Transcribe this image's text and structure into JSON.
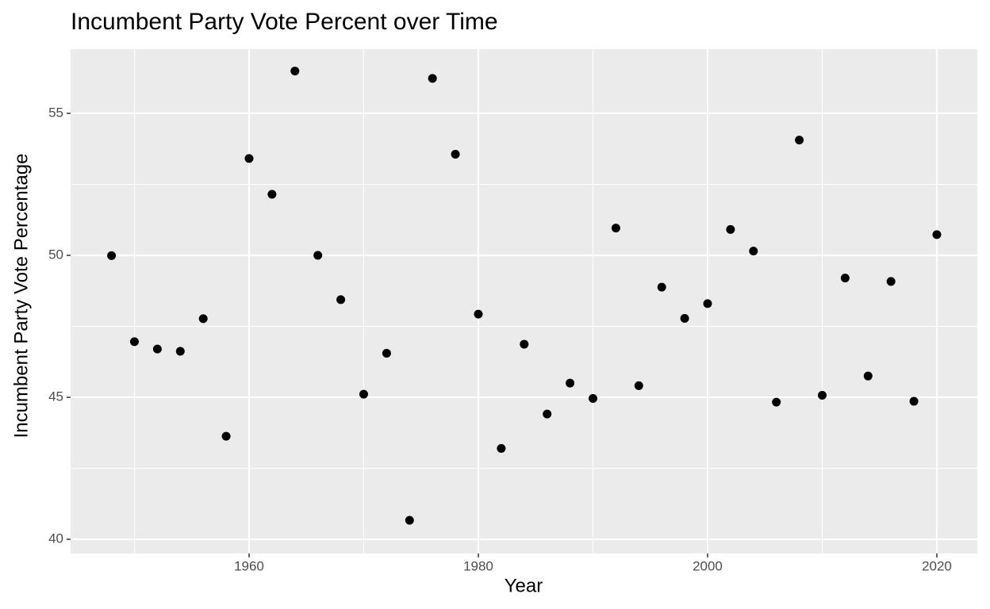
{
  "chart_data": {
    "type": "scatter",
    "title": "Incumbent Party Vote Percent over Time",
    "x_label": "Year",
    "y_label": "Incumbent Party Vote Percentage",
    "x": [
      1948,
      1950,
      1952,
      1954,
      1956,
      1958,
      1960,
      1962,
      1964,
      1966,
      1968,
      1970,
      1972,
      1974,
      1976,
      1978,
      1980,
      1982,
      1984,
      1986,
      1988,
      1990,
      1992,
      1994,
      1996,
      1998,
      2000,
      2002,
      2004,
      2006,
      2008,
      2010,
      2012,
      2014,
      2016,
      2018,
      2020
    ],
    "values": [
      49.99,
      46.96,
      46.7,
      46.62,
      47.77,
      43.63,
      53.41,
      52.15,
      56.49,
      50.0,
      48.44,
      45.11,
      46.55,
      40.67,
      56.23,
      53.56,
      47.93,
      43.2,
      46.87,
      44.41,
      45.5,
      44.96,
      50.96,
      45.41,
      48.88,
      47.78,
      48.3,
      50.91,
      50.15,
      44.83,
      54.06,
      45.07,
      49.2,
      45.75,
      49.08,
      44.86,
      50.73
    ],
    "color": "#000000",
    "xlim": [
      1944.43,
      2023.53
    ],
    "ylim": [
      39.5,
      57.26
    ],
    "xticks": [
      1960,
      1980,
      2000,
      2020
    ],
    "yticks": [
      40,
      45,
      50,
      55
    ],
    "x_minor_ticks": [
      1950,
      1970,
      1990,
      2010
    ],
    "y_minor_ticks": [
      42.5,
      47.5,
      52.5
    ],
    "grid": true
  }
}
